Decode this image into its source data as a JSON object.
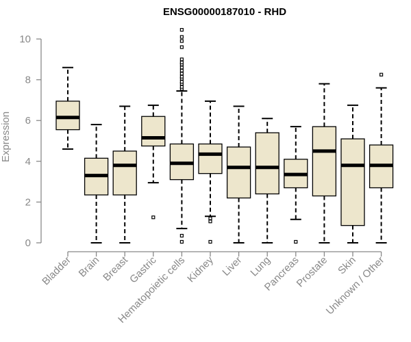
{
  "chart_data": {
    "type": "boxplot",
    "title": "ENSG00000187010 - RHD",
    "ylabel": "Expression",
    "xlabel": "",
    "ylim": [
      0,
      10
    ],
    "yticks": [
      0,
      2,
      4,
      6,
      8,
      10
    ],
    "box_color": "#ede6cc",
    "categories": [
      "Bladder",
      "Brain",
      "Breast",
      "Gastric",
      "Hematopoietic cells",
      "Kidney",
      "Liver",
      "Lung",
      "Pancreas",
      "Prostate",
      "Skin",
      "Unknown / Other"
    ],
    "boxes": [
      {
        "min": 4.6,
        "q1": 5.55,
        "median": 6.15,
        "q3": 6.95,
        "max": 8.6,
        "outliers": []
      },
      {
        "min": 0.0,
        "q1": 2.35,
        "median": 3.3,
        "q3": 4.15,
        "max": 5.8,
        "outliers": []
      },
      {
        "min": 0.0,
        "q1": 2.35,
        "median": 3.8,
        "q3": 4.5,
        "max": 6.7,
        "outliers": []
      },
      {
        "min": 2.95,
        "q1": 4.75,
        "median": 5.15,
        "q3": 6.2,
        "max": 6.75,
        "outliers": [
          1.25
        ]
      },
      {
        "min": 0.7,
        "q1": 3.1,
        "median": 3.9,
        "q3": 4.85,
        "max": 7.45,
        "outliers": [
          0.05,
          0.35,
          7.55,
          7.65,
          7.8,
          7.9,
          8.05,
          8.15,
          8.3,
          8.45,
          8.6,
          8.75,
          8.85,
          9.0,
          9.6,
          9.9,
          10.1,
          10.45
        ]
      },
      {
        "min": 1.3,
        "q1": 3.4,
        "median": 4.35,
        "q3": 4.85,
        "max": 6.95,
        "outliers": [
          0.05,
          1.05,
          1.2
        ]
      },
      {
        "min": 0.0,
        "q1": 2.2,
        "median": 3.7,
        "q3": 4.7,
        "max": 6.7,
        "outliers": []
      },
      {
        "min": 0.0,
        "q1": 2.4,
        "median": 3.7,
        "q3": 5.4,
        "max": 6.1,
        "outliers": []
      },
      {
        "min": 1.15,
        "q1": 2.7,
        "median": 3.35,
        "q3": 4.1,
        "max": 5.7,
        "outliers": [
          0.05
        ]
      },
      {
        "min": 0.0,
        "q1": 2.3,
        "median": 4.5,
        "q3": 5.7,
        "max": 7.8,
        "outliers": []
      },
      {
        "min": 0.0,
        "q1": 0.85,
        "median": 3.8,
        "q3": 5.1,
        "max": 6.75,
        "outliers": []
      },
      {
        "min": 0.0,
        "q1": 2.7,
        "median": 3.8,
        "q3": 4.8,
        "max": 7.6,
        "outliers": [
          8.25
        ]
      }
    ]
  }
}
